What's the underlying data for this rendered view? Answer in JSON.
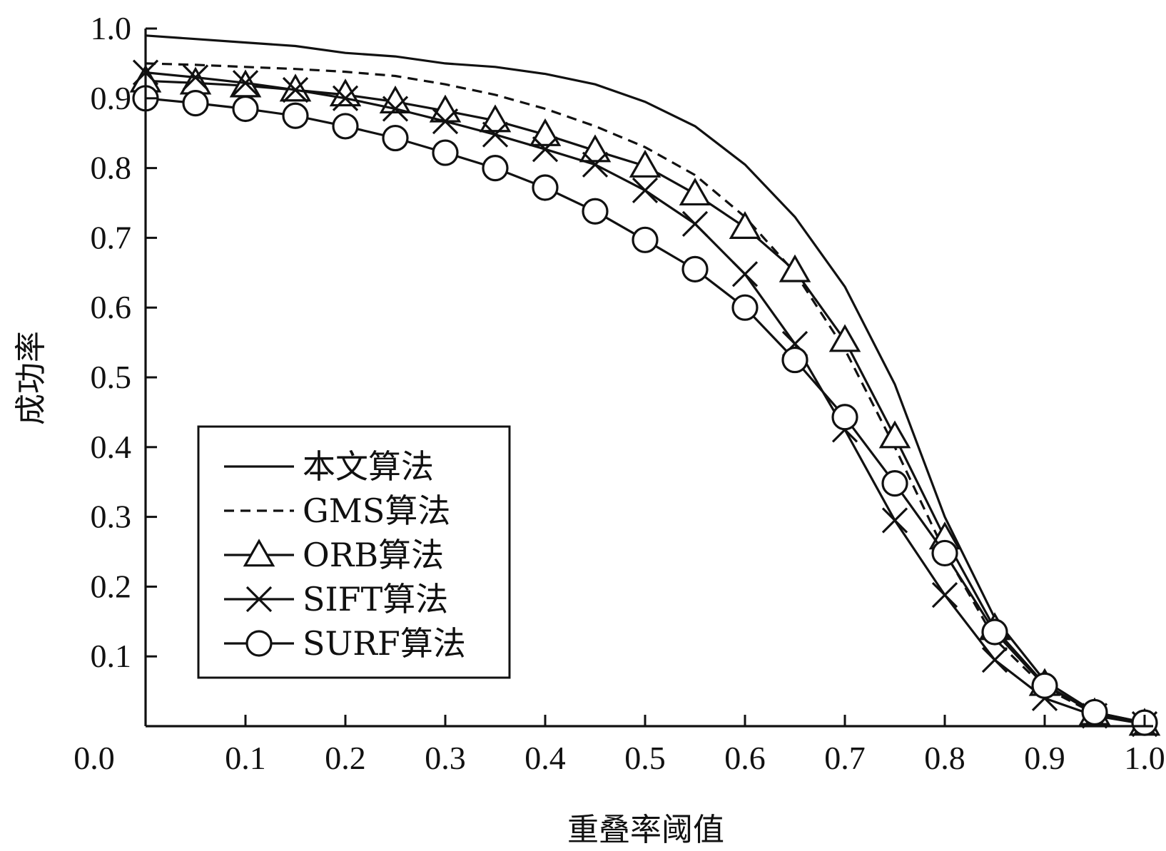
{
  "chart_data": {
    "type": "line",
    "xlabel": "重叠率阈值",
    "ylabel": "成功率",
    "xlim": [
      0.0,
      1.0
    ],
    "ylim": [
      0.0,
      1.0
    ],
    "x_ticks": [
      "0.0",
      "0.1",
      "0.2",
      "0.3",
      "0.4",
      "0.5",
      "0.6",
      "0.7",
      "0.8",
      "0.9",
      "1.0"
    ],
    "y_ticks": [
      "0.1",
      "0.2",
      "0.3",
      "0.4",
      "0.5",
      "0.6",
      "0.7",
      "0.8",
      "0.9",
      "1.0"
    ],
    "grid": false,
    "legend_position": "lower-left",
    "series": [
      {
        "name": "本文算法",
        "style": "solid",
        "marker": "none",
        "x": [
          0.0,
          0.05,
          0.1,
          0.15,
          0.2,
          0.25,
          0.3,
          0.35,
          0.4,
          0.45,
          0.5,
          0.55,
          0.6,
          0.65,
          0.7,
          0.75,
          0.8,
          0.85,
          0.9,
          0.95,
          1.0
        ],
        "values": [
          0.99,
          0.985,
          0.98,
          0.975,
          0.965,
          0.96,
          0.95,
          0.945,
          0.935,
          0.92,
          0.895,
          0.86,
          0.805,
          0.73,
          0.63,
          0.49,
          0.3,
          0.155,
          0.065,
          0.02,
          0.005
        ]
      },
      {
        "name": "GMS算法",
        "style": "dashed",
        "marker": "none",
        "x": [
          0.0,
          0.05,
          0.1,
          0.15,
          0.2,
          0.25,
          0.3,
          0.35,
          0.4,
          0.45,
          0.5,
          0.55,
          0.6,
          0.65,
          0.7,
          0.75,
          0.8,
          0.85,
          0.9,
          0.95,
          1.0
        ],
        "values": [
          0.95,
          0.948,
          0.945,
          0.942,
          0.938,
          0.932,
          0.92,
          0.905,
          0.885,
          0.86,
          0.83,
          0.79,
          0.73,
          0.65,
          0.54,
          0.4,
          0.25,
          0.125,
          0.055,
          0.018,
          0.004
        ]
      },
      {
        "name": "ORB算法",
        "style": "solid",
        "marker": "triangle",
        "x": [
          0.0,
          0.05,
          0.1,
          0.15,
          0.2,
          0.25,
          0.3,
          0.35,
          0.4,
          0.45,
          0.5,
          0.55,
          0.6,
          0.65,
          0.7,
          0.75,
          0.8,
          0.85,
          0.9,
          0.95,
          1.0
        ],
        "values": [
          0.925,
          0.922,
          0.918,
          0.912,
          0.905,
          0.895,
          0.882,
          0.868,
          0.848,
          0.825,
          0.803,
          0.763,
          0.715,
          0.653,
          0.553,
          0.415,
          0.27,
          0.14,
          0.06,
          0.018,
          0.003
        ]
      },
      {
        "name": "SIFT算法",
        "style": "solid",
        "marker": "x",
        "x": [
          0.0,
          0.05,
          0.1,
          0.15,
          0.2,
          0.25,
          0.3,
          0.35,
          0.4,
          0.45,
          0.5,
          0.55,
          0.6,
          0.65,
          0.7,
          0.75,
          0.8,
          0.85,
          0.9,
          0.95,
          1.0
        ],
        "values": [
          0.937,
          0.93,
          0.922,
          0.912,
          0.9,
          0.885,
          0.867,
          0.848,
          0.827,
          0.805,
          0.768,
          0.72,
          0.648,
          0.548,
          0.425,
          0.295,
          0.188,
          0.095,
          0.04,
          0.015,
          0.003
        ]
      },
      {
        "name": "SURF算法",
        "style": "solid",
        "marker": "circle",
        "x": [
          0.0,
          0.05,
          0.1,
          0.15,
          0.2,
          0.25,
          0.3,
          0.35,
          0.4,
          0.45,
          0.5,
          0.55,
          0.6,
          0.65,
          0.7,
          0.75,
          0.8,
          0.85,
          0.9,
          0.95,
          1.0
        ],
        "values": [
          0.9,
          0.893,
          0.885,
          0.875,
          0.86,
          0.843,
          0.822,
          0.8,
          0.772,
          0.738,
          0.697,
          0.655,
          0.6,
          0.525,
          0.443,
          0.348,
          0.248,
          0.135,
          0.058,
          0.02,
          0.005
        ]
      }
    ]
  }
}
